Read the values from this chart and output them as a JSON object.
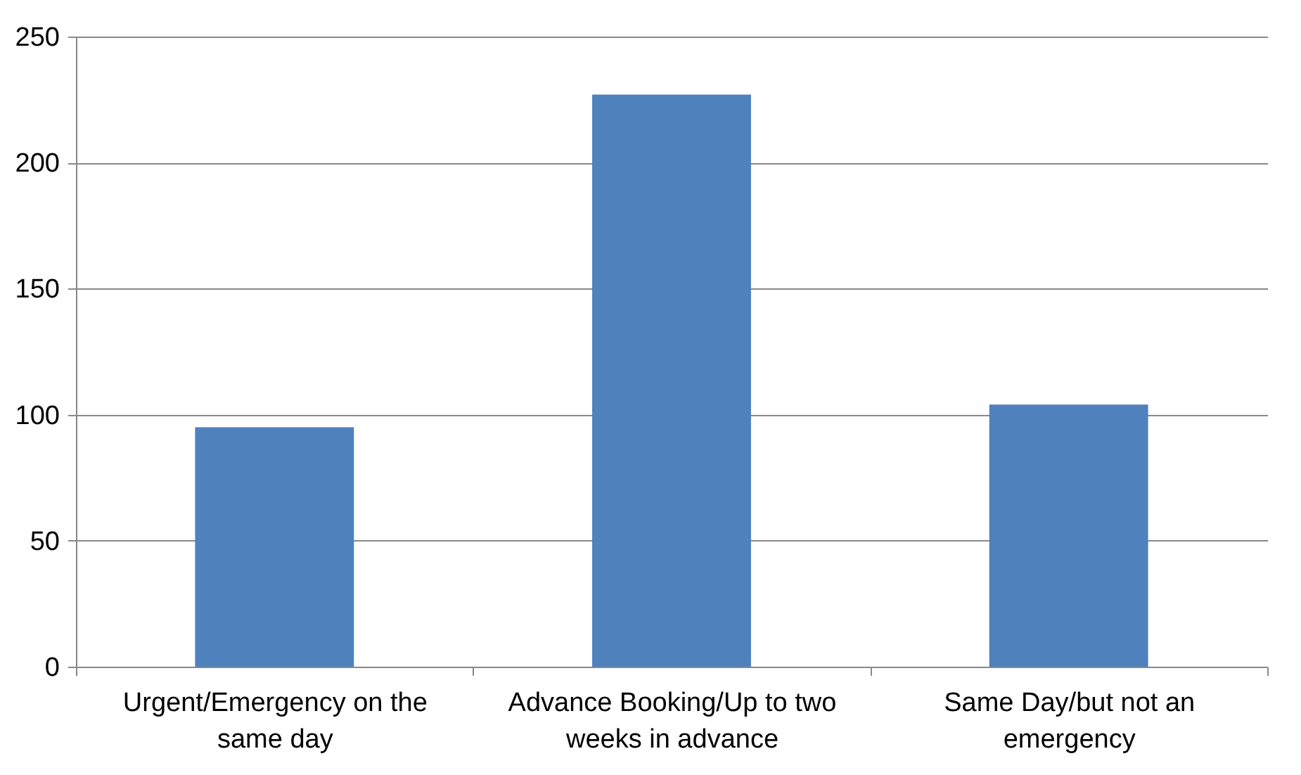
{
  "chart_data": {
    "type": "bar",
    "categories": [
      "Urgent/Emergency on the same day",
      "Advance Booking/Up to two weeks in advance",
      "Same Day/but not an emergency"
    ],
    "values": [
      95,
      227,
      104
    ],
    "color": "#4f81bd",
    "ylim": [
      0,
      250
    ],
    "yticks": [
      0,
      50,
      100,
      150,
      200,
      250
    ],
    "grid": "y"
  }
}
